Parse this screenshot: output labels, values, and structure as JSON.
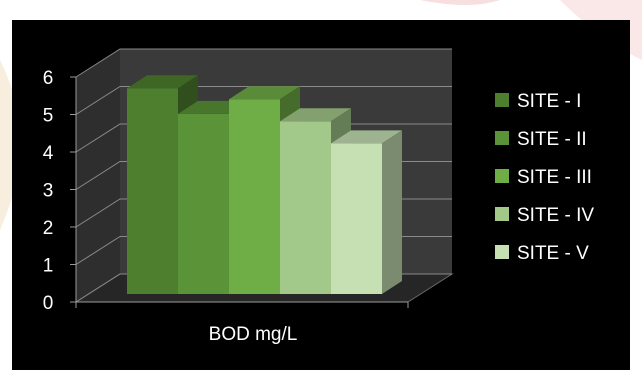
{
  "chart_data": {
    "type": "bar",
    "title": "",
    "categories": [
      "BOD mg/L"
    ],
    "series": [
      {
        "name": "SITE - I",
        "values": [
          5.6
        ],
        "color": "#4d7f2e"
      },
      {
        "name": "SITE - II",
        "values": [
          4.9
        ],
        "color": "#5b9438"
      },
      {
        "name": "SITE - III",
        "values": [
          5.3
        ],
        "color": "#6fae46"
      },
      {
        "name": "SITE - IV",
        "values": [
          4.7
        ],
        "color": "#a2c98a"
      },
      {
        "name": "SITE - V",
        "values": [
          4.1
        ],
        "color": "#c6e0b4"
      }
    ],
    "ylim": [
      0,
      6
    ],
    "yticks": [
      "0",
      "1",
      "2",
      "3",
      "4",
      "5",
      "6"
    ],
    "xlabel": "",
    "ylabel": "",
    "grid": true,
    "legend": "right",
    "style": "3d-clustered-column",
    "background": "#000000",
    "wall_color": "#3a3a3a"
  }
}
